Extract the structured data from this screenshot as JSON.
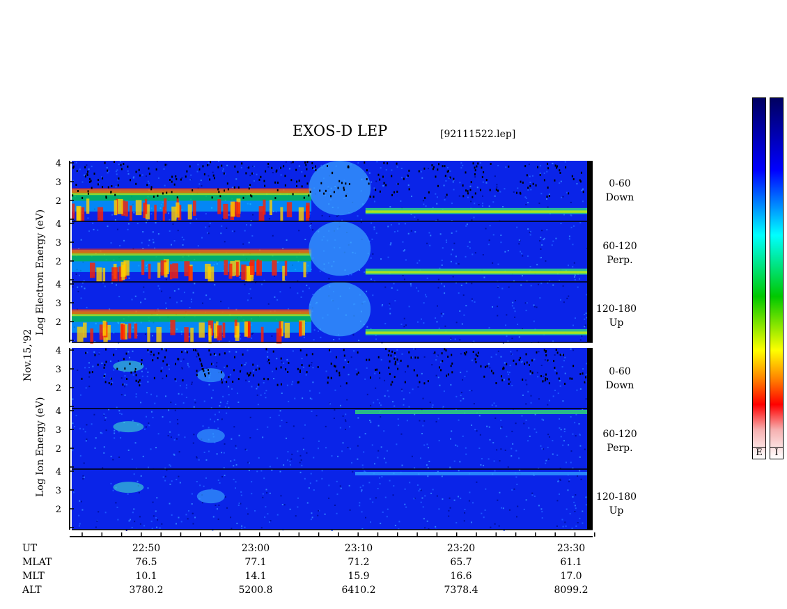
{
  "title": "EXOS-D LEP",
  "file": "[92111522.lep]",
  "date_label": "Nov.15,'92",
  "electron_label": "Log Electron Energy (eV)",
  "ion_label": "Log Ion Energy (eV)",
  "pitch_angles": [
    {
      "range": "0-60",
      "dir": "Down"
    },
    {
      "range": "60-120",
      "dir": "Perp."
    },
    {
      "range": "120-180",
      "dir": "Up"
    }
  ],
  "colorbar_labels": [
    "E",
    "I"
  ],
  "ephemeris": {
    "row_names": [
      "UT",
      "MLAT",
      "MLT",
      "ALT"
    ],
    "columns": [
      {
        "ut": "22:50",
        "mlat": "76.5",
        "mlt": "10.1",
        "alt": "3780.2"
      },
      {
        "ut": "23:00",
        "mlat": "77.1",
        "mlt": "14.1",
        "alt": "5200.8"
      },
      {
        "ut": "23:10",
        "mlat": "71.2",
        "mlt": "15.9",
        "alt": "6410.2"
      },
      {
        "ut": "23:20",
        "mlat": "65.7",
        "mlt": "16.6",
        "alt": "7378.4"
      },
      {
        "ut": "23:30",
        "mlat": "61.1",
        "mlt": "17.0",
        "alt": "8099.2"
      }
    ]
  },
  "chart_data": {
    "type": "heatmap",
    "title": "EXOS-D LEP",
    "xlabel": "UT",
    "xlim": [
      "22:41",
      "23:34"
    ],
    "ylabel_electron": "Log Electron Energy (eV)",
    "ylabel_ion": "Log Ion Energy (eV)",
    "y_ticks": [
      1,
      2,
      3,
      4
    ],
    "panels": [
      {
        "species": "Electron",
        "pitch": "0-60",
        "dir": "Down"
      },
      {
        "species": "Electron",
        "pitch": "60-120",
        "dir": "Perp."
      },
      {
        "species": "Electron",
        "pitch": "120-180",
        "dir": "Up"
      },
      {
        "species": "Ion",
        "pitch": "0-60",
        "dir": "Down"
      },
      {
        "species": "Ion",
        "pitch": "60-120",
        "dir": "Perp."
      },
      {
        "species": "Ion",
        "pitch": "120-180",
        "dir": "Up"
      }
    ],
    "colormap": [
      "#fbe6e6",
      "#f3b5b5",
      "#ff0000",
      "#ff8000",
      "#ffff00",
      "#00c800",
      "#00ffff",
      "#3090ff",
      "#0000ff",
      "#000060"
    ]
  }
}
